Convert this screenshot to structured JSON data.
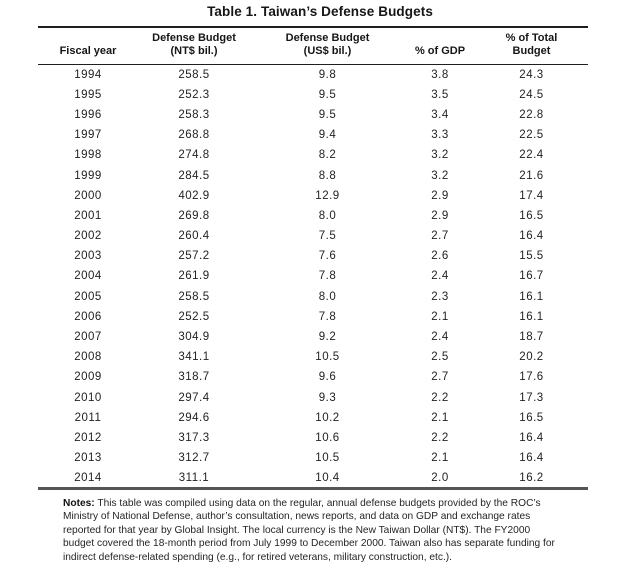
{
  "title": "Table 1. Taiwan’s Defense Budgets",
  "table": {
    "columns": [
      {
        "label": "Fiscal year"
      },
      {
        "label": "Defense Budget\n(NT$ bil.)"
      },
      {
        "label": "Defense Budget\n(US$ bil.)"
      },
      {
        "label": "% of GDP"
      },
      {
        "label": "% of Total\nBudget"
      }
    ],
    "rows": [
      [
        "1994",
        "258.5",
        "9.8",
        "3.8",
        "24.3"
      ],
      [
        "1995",
        "252.3",
        "9.5",
        "3.5",
        "24.5"
      ],
      [
        "1996",
        "258.3",
        "9.5",
        "3.4",
        "22.8"
      ],
      [
        "1997",
        "268.8",
        "9.4",
        "3.3",
        "22.5"
      ],
      [
        "1998",
        "274.8",
        "8.2",
        "3.2",
        "22.4"
      ],
      [
        "1999",
        "284.5",
        "8.8",
        "3.2",
        "21.6"
      ],
      [
        "2000",
        "402.9",
        "12.9",
        "2.9",
        "17.4"
      ],
      [
        "2001",
        "269.8",
        "8.0",
        "2.9",
        "16.5"
      ],
      [
        "2002",
        "260.4",
        "7.5",
        "2.7",
        "16.4"
      ],
      [
        "2003",
        "257.2",
        "7.6",
        "2.6",
        "15.5"
      ],
      [
        "2004",
        "261.9",
        "7.8",
        "2.4",
        "16.7"
      ],
      [
        "2005",
        "258.5",
        "8.0",
        "2.3",
        "16.1"
      ],
      [
        "2006",
        "252.5",
        "7.8",
        "2.1",
        "16.1"
      ],
      [
        "2007",
        "304.9",
        "9.2",
        "2.4",
        "18.7"
      ],
      [
        "2008",
        "341.1",
        "10.5",
        "2.5",
        "20.2"
      ],
      [
        "2009",
        "318.7",
        "9.6",
        "2.7",
        "17.6"
      ],
      [
        "2010",
        "297.4",
        "9.3",
        "2.2",
        "17.3"
      ],
      [
        "2011",
        "294.6",
        "10.2",
        "2.1",
        "16.5"
      ],
      [
        "2012",
        "317.3",
        "10.6",
        "2.2",
        "16.4"
      ],
      [
        "2013",
        "312.7",
        "10.5",
        "2.1",
        "16.4"
      ],
      [
        "2014",
        "311.1",
        "10.4",
        "2.0",
        "16.2"
      ]
    ]
  },
  "notes": {
    "label": "Notes:",
    "lines": [
      "This table was compiled using data on the regular, annual defense budgets provided by the ROC’s",
      "Ministry of National Defense, author’s consultation, news reports, and data on GDP and exchange rates",
      "reported for that year by Global Insight. The local currency is the New Taiwan Dollar (NT$). The FY2000",
      "budget covered the 18-month period from July 1999 to December 2000. Taiwan also has separate funding for",
      "indirect defense-related spending (e.g., for retired veterans, military construction, etc.)."
    ],
    "text": "This table was compiled using data on the regular, annual defense budgets provided by the ROC’s Ministry of National Defense, author’s consultation, news reports, and data on GDP and exchange rates reported for that year by Global Insight. The local currency is the New Taiwan Dollar (NT$). The FY2000 budget covered the 18-month period from July 1999 to December 2000. Taiwan also has separate funding for indirect defense-related spending (e.g., for retired veterans, military construction, etc.)."
  },
  "colors": {
    "text": "#1c1c1c",
    "rule_dark": "#1f1f1f",
    "rule_bottom": "#555555",
    "background": "#ffffff"
  }
}
